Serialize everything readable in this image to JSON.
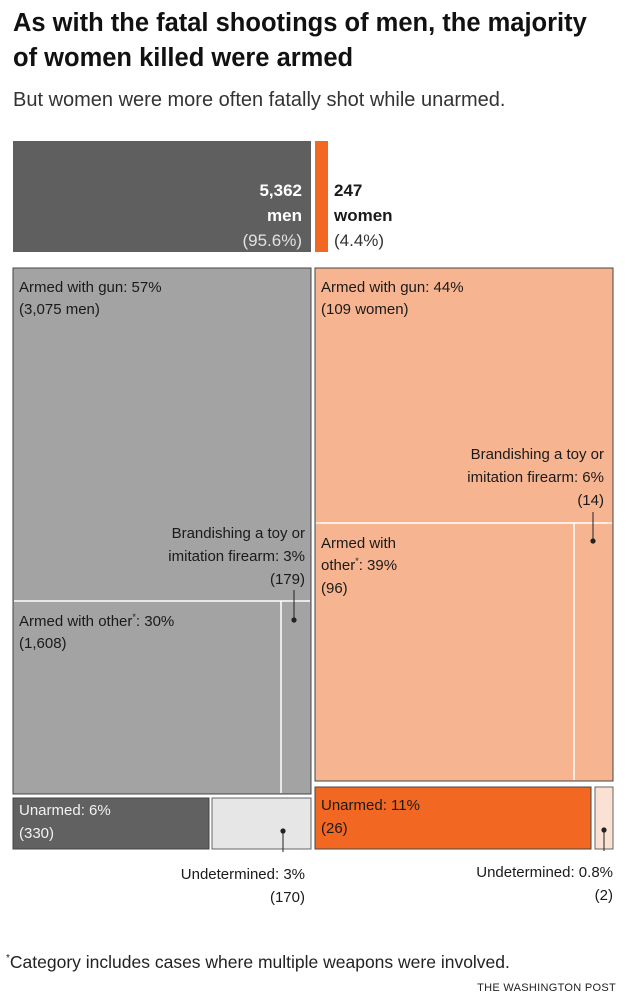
{
  "title": "As with the fatal shootings of men, the majority of women killed were armed",
  "subtitle": "But women were more often fatally shot while unarmed.",
  "footnote": {
    "marker": "*",
    "text": "Category includes cases where multiple weapons were involved."
  },
  "credit": "THE WASHINGTON POST",
  "colors": {
    "men_total": "#5f5f5f",
    "men_block": "#a3a3a3",
    "men_unarmed": "#616161",
    "men_undetermined": "#e6e6e6",
    "women_total": "#f26722",
    "women_block": "#f7b491",
    "women_unarmed": "#f26722",
    "women_undetermined": "#fbe1d3"
  },
  "chart_data": {
    "type": "treemap",
    "title": "As with the fatal shootings of men, the majority of women killed were armed",
    "totals": [
      {
        "group": "men",
        "count": 5362,
        "count_label": "5,362",
        "name": "men",
        "pct_label": "(95.6%)"
      },
      {
        "group": "women",
        "count": 247,
        "count_label": "247",
        "name": "women",
        "pct_label": "(4.4%)"
      }
    ],
    "men": {
      "categories": [
        {
          "key": "gun",
          "line1": "Armed with gun: 57%",
          "line2": "(3,075 men)",
          "pct": 57,
          "count": 3075
        },
        {
          "key": "other",
          "line1": "Armed with other*: 30%",
          "line2": "(1,608)",
          "pct": 30,
          "count": 1608
        },
        {
          "key": "toy",
          "line1": "Brandishing a toy or",
          "line2": "imitation firearm: 3%",
          "line3": "(179)",
          "pct": 3,
          "count": 179
        },
        {
          "key": "unarmed",
          "line1": "Unarmed: 6%",
          "line2": "(330)",
          "pct": 6,
          "count": 330
        },
        {
          "key": "undetermined",
          "line1": "Undetermined: 3%",
          "line2": "(170)",
          "pct": 3,
          "count": 170
        }
      ]
    },
    "women": {
      "categories": [
        {
          "key": "gun",
          "line1": "Armed with gun: 44%",
          "line2": "(109 women)",
          "pct": 44,
          "count": 109
        },
        {
          "key": "other",
          "line1": "Armed with",
          "line2": "other*: 39%",
          "line3": "(96)",
          "pct": 39,
          "count": 96
        },
        {
          "key": "toy",
          "line1": "Brandishing a toy or",
          "line2": "imitation firearm: 6%",
          "line3": "(14)",
          "pct": 6,
          "count": 14
        },
        {
          "key": "unarmed",
          "line1": "Unarmed: 11%",
          "line2": "(26)",
          "pct": 11,
          "count": 26
        },
        {
          "key": "undetermined",
          "line1": "Undetermined: 0.8%",
          "line2": "(2)",
          "pct": 0.8,
          "count": 2
        }
      ]
    }
  }
}
